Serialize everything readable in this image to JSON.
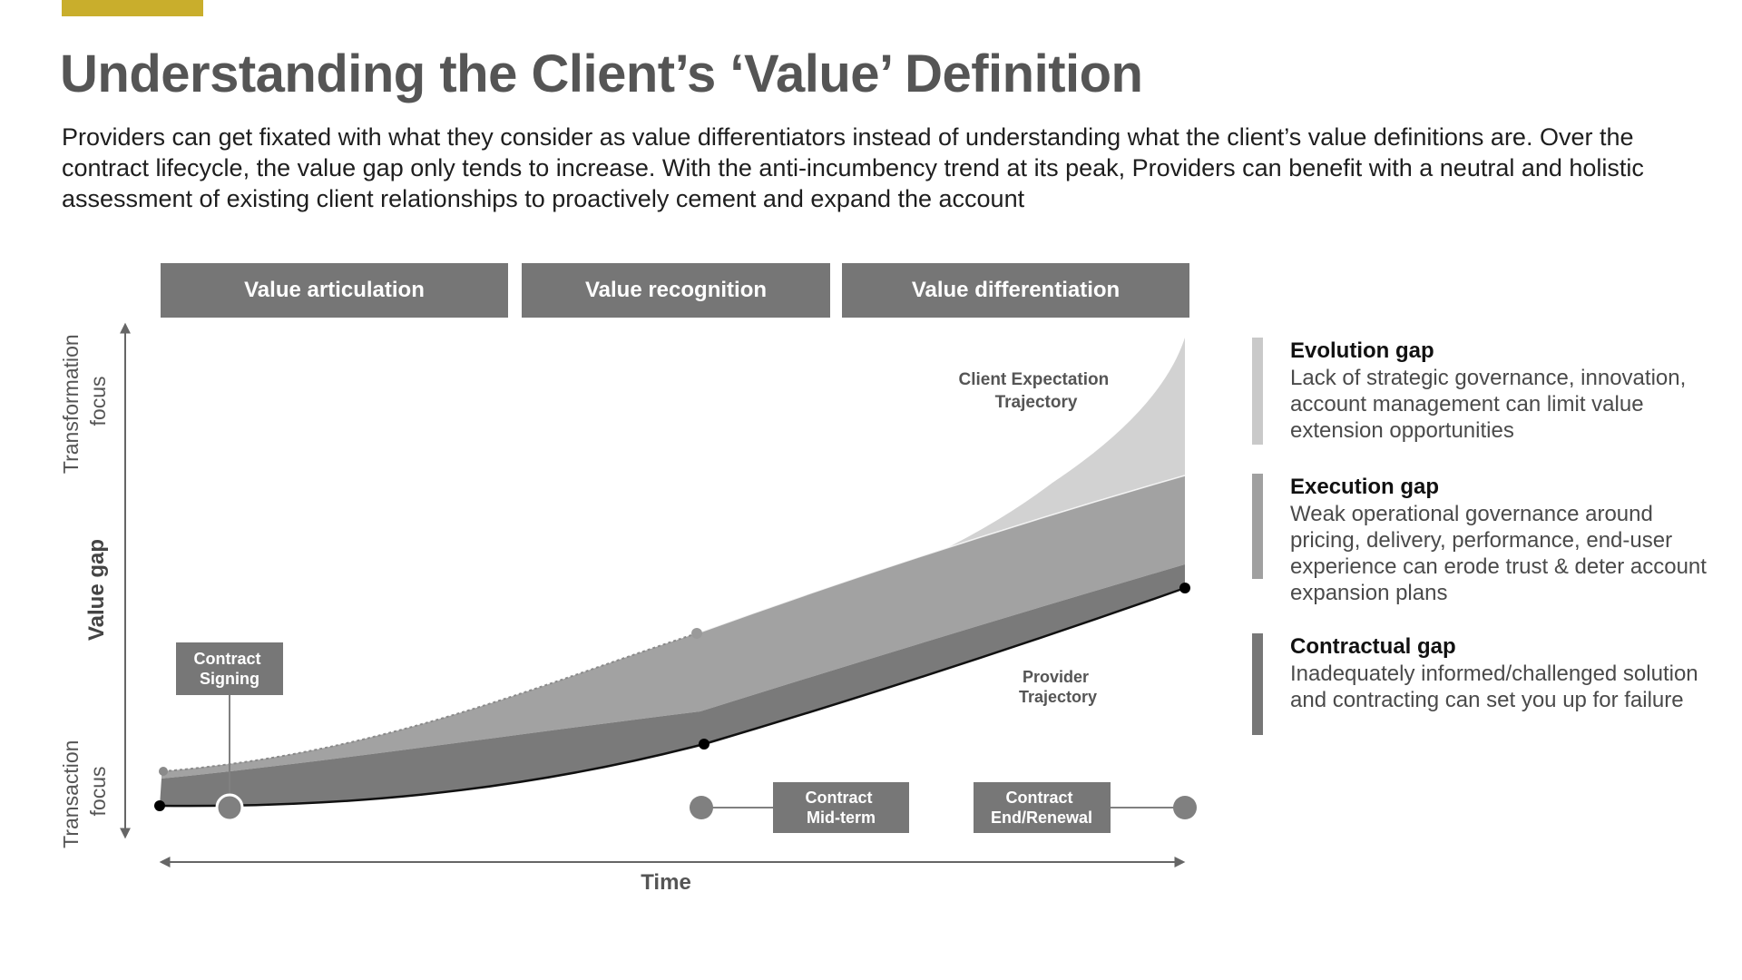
{
  "header": {
    "title": "Understanding the Client’s ‘Value’ Definition",
    "intro": "Providers can get fixated with what they consider as value differentiators instead of understanding what the client’s value definitions are. Over the contract lifecycle, the value gap only tends to increase. With the anti-incumbency trend at its peak, Providers can benefit with a neutral and holistic assessment of existing client relationships to proactively cement and expand the account",
    "accent_color": "#c9ae2c"
  },
  "phases": [
    {
      "label": "Value articulation"
    },
    {
      "label": "Value recognition"
    },
    {
      "label": "Value differentiation"
    }
  ],
  "axes": {
    "y_top_label": [
      "Transformation",
      "focus"
    ],
    "y_mid_label": "Value gap",
    "y_bottom_label": [
      "Transaction",
      "focus"
    ],
    "x_label": "Time"
  },
  "curves": {
    "client_label": [
      "Client Expectation",
      "Trajectory"
    ],
    "provider_label": [
      "Provider",
      "Trajectory"
    ]
  },
  "milestones": [
    {
      "label": [
        "Contract",
        "Signing"
      ]
    },
    {
      "label": [
        "Contract",
        "Mid-term"
      ]
    },
    {
      "label": [
        "Contract",
        "End/Renewal"
      ]
    }
  ],
  "gaps": [
    {
      "title": "Evolution gap",
      "desc": "Lack of strategic governance, innovation, account management can limit value extension opportunities",
      "color": "#c9c9c9"
    },
    {
      "title": "Execution gap",
      "desc": "Weak operational governance around pricing, delivery, performance, end-user experience can erode trust & deter account expansion plans",
      "color": "#a0a0a0"
    },
    {
      "title": "Contractual gap",
      "desc": "Inadequately informed/challenged solution and contracting can set you up for failure",
      "color": "#777777"
    }
  ]
}
